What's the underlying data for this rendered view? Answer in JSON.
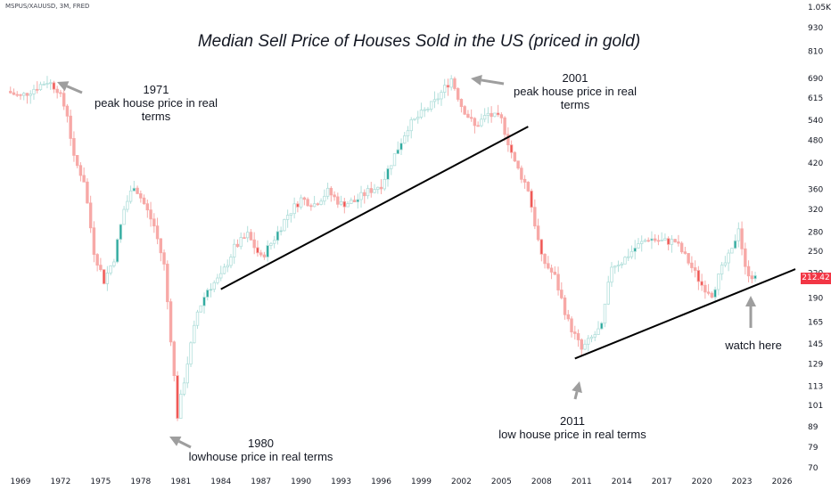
{
  "symbol": "MSPUS/XAUUSD, 3M, FRED",
  "title": "Median Sell Price of Houses Sold in the US (priced in gold)",
  "last_price": "212.42",
  "annotations": [
    {
      "year": "1971",
      "text": "peak house price in real terms"
    },
    {
      "year": "2001",
      "text": "peak house price in real terms"
    },
    {
      "year": "1980",
      "text": "lowhouse price in real terms"
    },
    {
      "year": "2011",
      "text": "low house price in real terms"
    },
    {
      "year": "",
      "text": "watch here"
    }
  ],
  "colors": {
    "up": "#26a69a",
    "down": "#ef5350",
    "up_hollow": "#b2dfdb",
    "down_fill": "#f7a9a7",
    "tag": "#f23645"
  },
  "chart_data": {
    "type": "candlestick",
    "scale": "log",
    "x_ticks": [
      1969,
      1972,
      1975,
      1978,
      1981,
      1984,
      1987,
      1990,
      1993,
      1996,
      1999,
      2002,
      2005,
      2008,
      2011,
      2014,
      2017,
      2020,
      2023,
      2026
    ],
    "y_ticks": [
      "1.05K",
      "930",
      "810",
      "690",
      "615",
      "540",
      "480",
      "420",
      "360",
      "320",
      "280",
      "250",
      "220",
      "190",
      "165",
      "145",
      "129",
      "113",
      "101",
      "89",
      "79",
      "70"
    ],
    "y_values": [
      1050,
      930,
      810,
      690,
      615,
      540,
      480,
      420,
      360,
      320,
      280,
      250,
      220,
      190,
      165,
      145,
      129,
      113,
      101,
      89,
      79,
      70
    ],
    "ylim": [
      70,
      1050
    ],
    "xlim": [
      1968.0,
      2027.0
    ],
    "series_close": [
      [
        1968.0,
        640
      ],
      [
        1969.0,
        620
      ],
      [
        1970.0,
        650
      ],
      [
        1971.0,
        680
      ],
      [
        1971.75,
        650
      ],
      [
        1972.5,
        560
      ],
      [
        1973.0,
        430
      ],
      [
        1973.75,
        380
      ],
      [
        1974.5,
        250
      ],
      [
        1975.25,
        210
      ],
      [
        1976.0,
        240
      ],
      [
        1976.75,
        320
      ],
      [
        1977.5,
        370
      ],
      [
        1978.25,
        330
      ],
      [
        1979.0,
        290
      ],
      [
        1979.75,
        230
      ],
      [
        1980.25,
        150
      ],
      [
        1980.75,
        95
      ],
      [
        1981.5,
        130
      ],
      [
        1982.25,
        175
      ],
      [
        1983.0,
        200
      ],
      [
        1984.0,
        215
      ],
      [
        1985.0,
        255
      ],
      [
        1986.0,
        275
      ],
      [
        1987.0,
        240
      ],
      [
        1988.0,
        270
      ],
      [
        1989.0,
        310
      ],
      [
        1990.0,
        340
      ],
      [
        1991.0,
        330
      ],
      [
        1992.0,
        355
      ],
      [
        1993.0,
        330
      ],
      [
        1994.0,
        335
      ],
      [
        1995.0,
        355
      ],
      [
        1996.0,
        370
      ],
      [
        1997.0,
        440
      ],
      [
        1998.0,
        520
      ],
      [
        1999.0,
        560
      ],
      [
        2000.0,
        600
      ],
      [
        2001.25,
        690
      ],
      [
        2002.0,
        590
      ],
      [
        2003.0,
        520
      ],
      [
        2004.0,
        560
      ],
      [
        2005.0,
        540
      ],
      [
        2006.0,
        420
      ],
      [
        2007.0,
        360
      ],
      [
        2008.0,
        240
      ],
      [
        2009.0,
        215
      ],
      [
        2010.0,
        165
      ],
      [
        2011.0,
        140
      ],
      [
        2011.75,
        150
      ],
      [
        2012.5,
        160
      ],
      [
        2013.25,
        230
      ],
      [
        2014.0,
        235
      ],
      [
        2015.0,
        255
      ],
      [
        2016.0,
        270
      ],
      [
        2017.0,
        265
      ],
      [
        2018.0,
        265
      ],
      [
        2019.0,
        235
      ],
      [
        2020.0,
        205
      ],
      [
        2020.75,
        195
      ],
      [
        2021.5,
        225
      ],
      [
        2022.25,
        250
      ],
      [
        2022.75,
        290
      ],
      [
        2023.25,
        225
      ],
      [
        2024.0,
        212.42
      ]
    ],
    "trendlines": [
      {
        "from": [
          1984.0,
          200
        ],
        "to": [
          2007.0,
          520
        ]
      },
      {
        "from": [
          2010.5,
          133
        ],
        "to": [
          2027.0,
          225
        ]
      }
    ]
  }
}
